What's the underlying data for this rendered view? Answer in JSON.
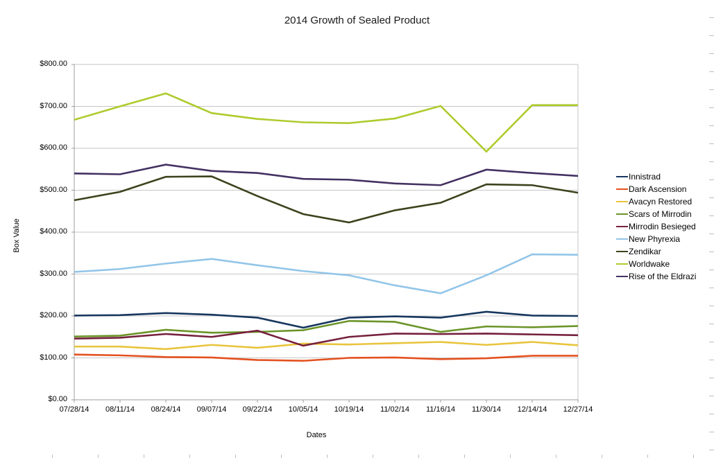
{
  "chart_data": {
    "type": "line",
    "title": "2014 Growth of Sealed Product",
    "xlabel": "Dates",
    "ylabel": "Box Value",
    "grid": true,
    "legend_position": "right",
    "categories": [
      "07/28/14",
      "08/11/14",
      "08/24/14",
      "09/07/14",
      "09/22/14",
      "10/05/14",
      "10/19/14",
      "11/02/14",
      "11/16/14",
      "11/30/14",
      "12/14/14",
      "12/27/14"
    ],
    "y_axis": {
      "min": 0,
      "max": 800,
      "step": 100,
      "tick_labels": [
        "$0.00",
        "$100.00",
        "$200.00",
        "$300.00",
        "$400.00",
        "$500.00",
        "$600.00",
        "$700.00",
        "$800.00"
      ]
    },
    "series": [
      {
        "name": "Innistrad",
        "color": "#17375E",
        "values": [
          201,
          202,
          207,
          203,
          196,
          172,
          196,
          199,
          196,
          210,
          201,
          200
        ]
      },
      {
        "name": "Dark Ascension",
        "color": "#E4501E",
        "values": [
          108,
          106,
          102,
          101,
          95,
          93,
          100,
          101,
          97,
          99,
          105,
          105
        ]
      },
      {
        "name": "Avacyn Restored",
        "color": "#E8C43C",
        "values": [
          127,
          127,
          121,
          131,
          124,
          134,
          132,
          135,
          138,
          131,
          138,
          130
        ]
      },
      {
        "name": "Scars of Mirrodin",
        "color": "#6B9428",
        "values": [
          151,
          153,
          167,
          160,
          162,
          166,
          188,
          186,
          162,
          175,
          173,
          176
        ]
      },
      {
        "name": "Mirrodin Besieged",
        "color": "#75203C",
        "values": [
          146,
          148,
          157,
          150,
          165,
          129,
          150,
          158,
          157,
          158,
          156,
          154
        ]
      },
      {
        "name": "New Phyrexia",
        "color": "#92C5E8",
        "values": [
          305,
          312,
          325,
          336,
          321,
          307,
          297,
          273,
          254,
          297,
          347,
          346
        ]
      },
      {
        "name": "Zendikar",
        "color": "#3C421C",
        "values": [
          476,
          496,
          532,
          533,
          486,
          443,
          423,
          452,
          470,
          514,
          512,
          494
        ]
      },
      {
        "name": "Worldwake",
        "color": "#AECB2D",
        "values": [
          668,
          700,
          731,
          684,
          670,
          662,
          660,
          671,
          701,
          592,
          703,
          703
        ]
      },
      {
        "name": "Rise of the Eldrazi",
        "color": "#433162",
        "values": [
          540,
          538,
          561,
          546,
          541,
          527,
          525,
          516,
          512,
          549,
          541,
          534
        ]
      }
    ]
  }
}
